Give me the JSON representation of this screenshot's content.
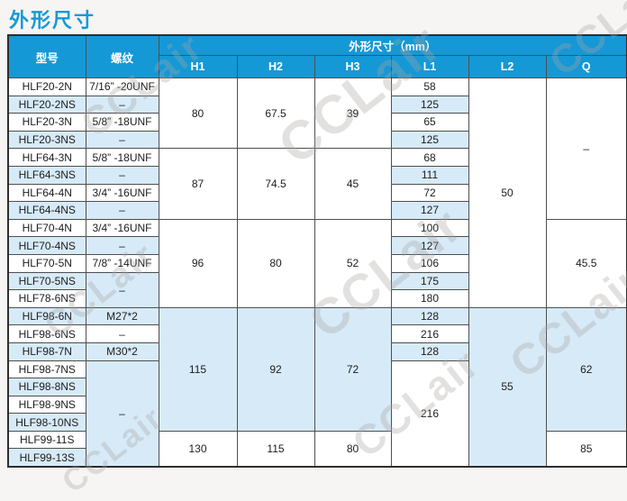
{
  "page": {
    "title": "外形尺寸"
  },
  "colors": {
    "header_bg": "#1598d6",
    "row_alt_bg": "#d7eaf8",
    "title_color": "#1799d8",
    "border_color": "#4f4f4f",
    "page_bg": "#f6f5f3"
  },
  "watermark": {
    "text": "CCLair"
  },
  "table": {
    "header": {
      "col_model": "型号",
      "col_thread": "螺纹",
      "col_dims": "外形尺寸（mm）",
      "sub_cols": [
        "H1",
        "H2",
        "H3",
        "L1",
        "L2",
        "Q"
      ]
    },
    "rows": [
      {
        "cells": [
          {
            "t": "HLF20-2N"
          },
          {
            "t": "7/16” -20UNF"
          },
          {
            "t": "80",
            "rs": 4,
            "m": 1
          },
          {
            "t": "67.5",
            "rs": 4,
            "m": 1
          },
          {
            "t": "39",
            "rs": 4,
            "m": 1
          },
          {
            "t": "58"
          },
          {
            "t": "50",
            "rs": 13,
            "m": 1
          },
          {
            "t": "–",
            "rs": 8,
            "m": 1
          }
        ]
      },
      {
        "cells": [
          {
            "t": "HLF20-2NS"
          },
          {
            "t": "–"
          },
          {
            "t": "125"
          }
        ]
      },
      {
        "cells": [
          {
            "t": "HLF20-3N"
          },
          {
            "t": "5/8” -18UNF"
          },
          {
            "t": "65"
          }
        ]
      },
      {
        "cells": [
          {
            "t": "HLF20-3NS"
          },
          {
            "t": "–"
          },
          {
            "t": "125"
          }
        ]
      },
      {
        "cells": [
          {
            "t": "HLF64-3N"
          },
          {
            "t": "5/8” -18UNF"
          },
          {
            "t": "87",
            "rs": 4,
            "m": 1
          },
          {
            "t": "74.5",
            "rs": 4,
            "m": 1
          },
          {
            "t": "45",
            "rs": 4,
            "m": 1
          },
          {
            "t": "68"
          }
        ]
      },
      {
        "cells": [
          {
            "t": "HLF64-3NS"
          },
          {
            "t": "–"
          },
          {
            "t": "111"
          }
        ]
      },
      {
        "cells": [
          {
            "t": "HLF64-4N"
          },
          {
            "t": "3/4” -16UNF"
          },
          {
            "t": "72"
          }
        ]
      },
      {
        "cells": [
          {
            "t": "HLF64-4NS"
          },
          {
            "t": "–"
          },
          {
            "t": "127"
          }
        ]
      },
      {
        "cells": [
          {
            "t": "HLF70-4N"
          },
          {
            "t": "3/4” -16UNF"
          },
          {
            "t": "96",
            "rs": 5,
            "m": 1
          },
          {
            "t": "80",
            "rs": 5,
            "m": 1
          },
          {
            "t": "52",
            "rs": 5,
            "m": 1
          },
          {
            "t": "100"
          },
          {
            "t": "45.5",
            "rs": 5,
            "m": 1
          }
        ]
      },
      {
        "cells": [
          {
            "t": "HLF70-4NS"
          },
          {
            "t": "–"
          },
          {
            "t": "127"
          }
        ]
      },
      {
        "cells": [
          {
            "t": "HLF70-5N"
          },
          {
            "t": "7/8” -14UNF"
          },
          {
            "t": "106"
          }
        ]
      },
      {
        "cells": [
          {
            "t": "HLF70-5NS"
          },
          {
            "t": "–",
            "rs": 2,
            "m": 1
          },
          {
            "t": "175"
          }
        ]
      },
      {
        "cells": [
          {
            "t": "HLF78-6NS"
          },
          {
            "t": "180"
          }
        ]
      },
      {
        "cells": [
          {
            "t": "HLF98-6N"
          },
          {
            "t": "M27*2"
          },
          {
            "t": "115",
            "rs": 7,
            "m": 1
          },
          {
            "t": "92",
            "rs": 7,
            "m": 1
          },
          {
            "t": "72",
            "rs": 7,
            "m": 1
          },
          {
            "t": "128"
          },
          {
            "t": "55",
            "rs": 9,
            "m": 1
          },
          {
            "t": "62",
            "rs": 7,
            "m": 1
          }
        ]
      },
      {
        "cells": [
          {
            "t": "HLF98-6NS"
          },
          {
            "t": "–"
          },
          {
            "t": "216"
          }
        ]
      },
      {
        "cells": [
          {
            "t": "HLF98-7N"
          },
          {
            "t": "M30*2"
          },
          {
            "t": "128"
          }
        ]
      },
      {
        "cells": [
          {
            "t": "HLF98-7NS"
          },
          {
            "t": "–",
            "rs": 6,
            "bg": "blue"
          },
          {
            "t": "216",
            "rs": 6,
            "m": 1
          }
        ]
      },
      {
        "cells": [
          {
            "t": "HLF98-8NS"
          }
        ]
      },
      {
        "cells": [
          {
            "t": "HLF98-9NS"
          }
        ]
      },
      {
        "cells": [
          {
            "t": "HLF98-10NS"
          }
        ]
      },
      {
        "cells": [
          {
            "t": "HLF99-11S"
          },
          {
            "t": "130",
            "rs": 2,
            "m": 1
          },
          {
            "t": "115",
            "rs": 2,
            "m": 1
          },
          {
            "t": "80",
            "rs": 2,
            "m": 1
          },
          {
            "t": "85",
            "rs": 2,
            "m": 1
          }
        ]
      },
      {
        "cells": [
          {
            "t": "HLF99-13S"
          }
        ]
      }
    ]
  }
}
